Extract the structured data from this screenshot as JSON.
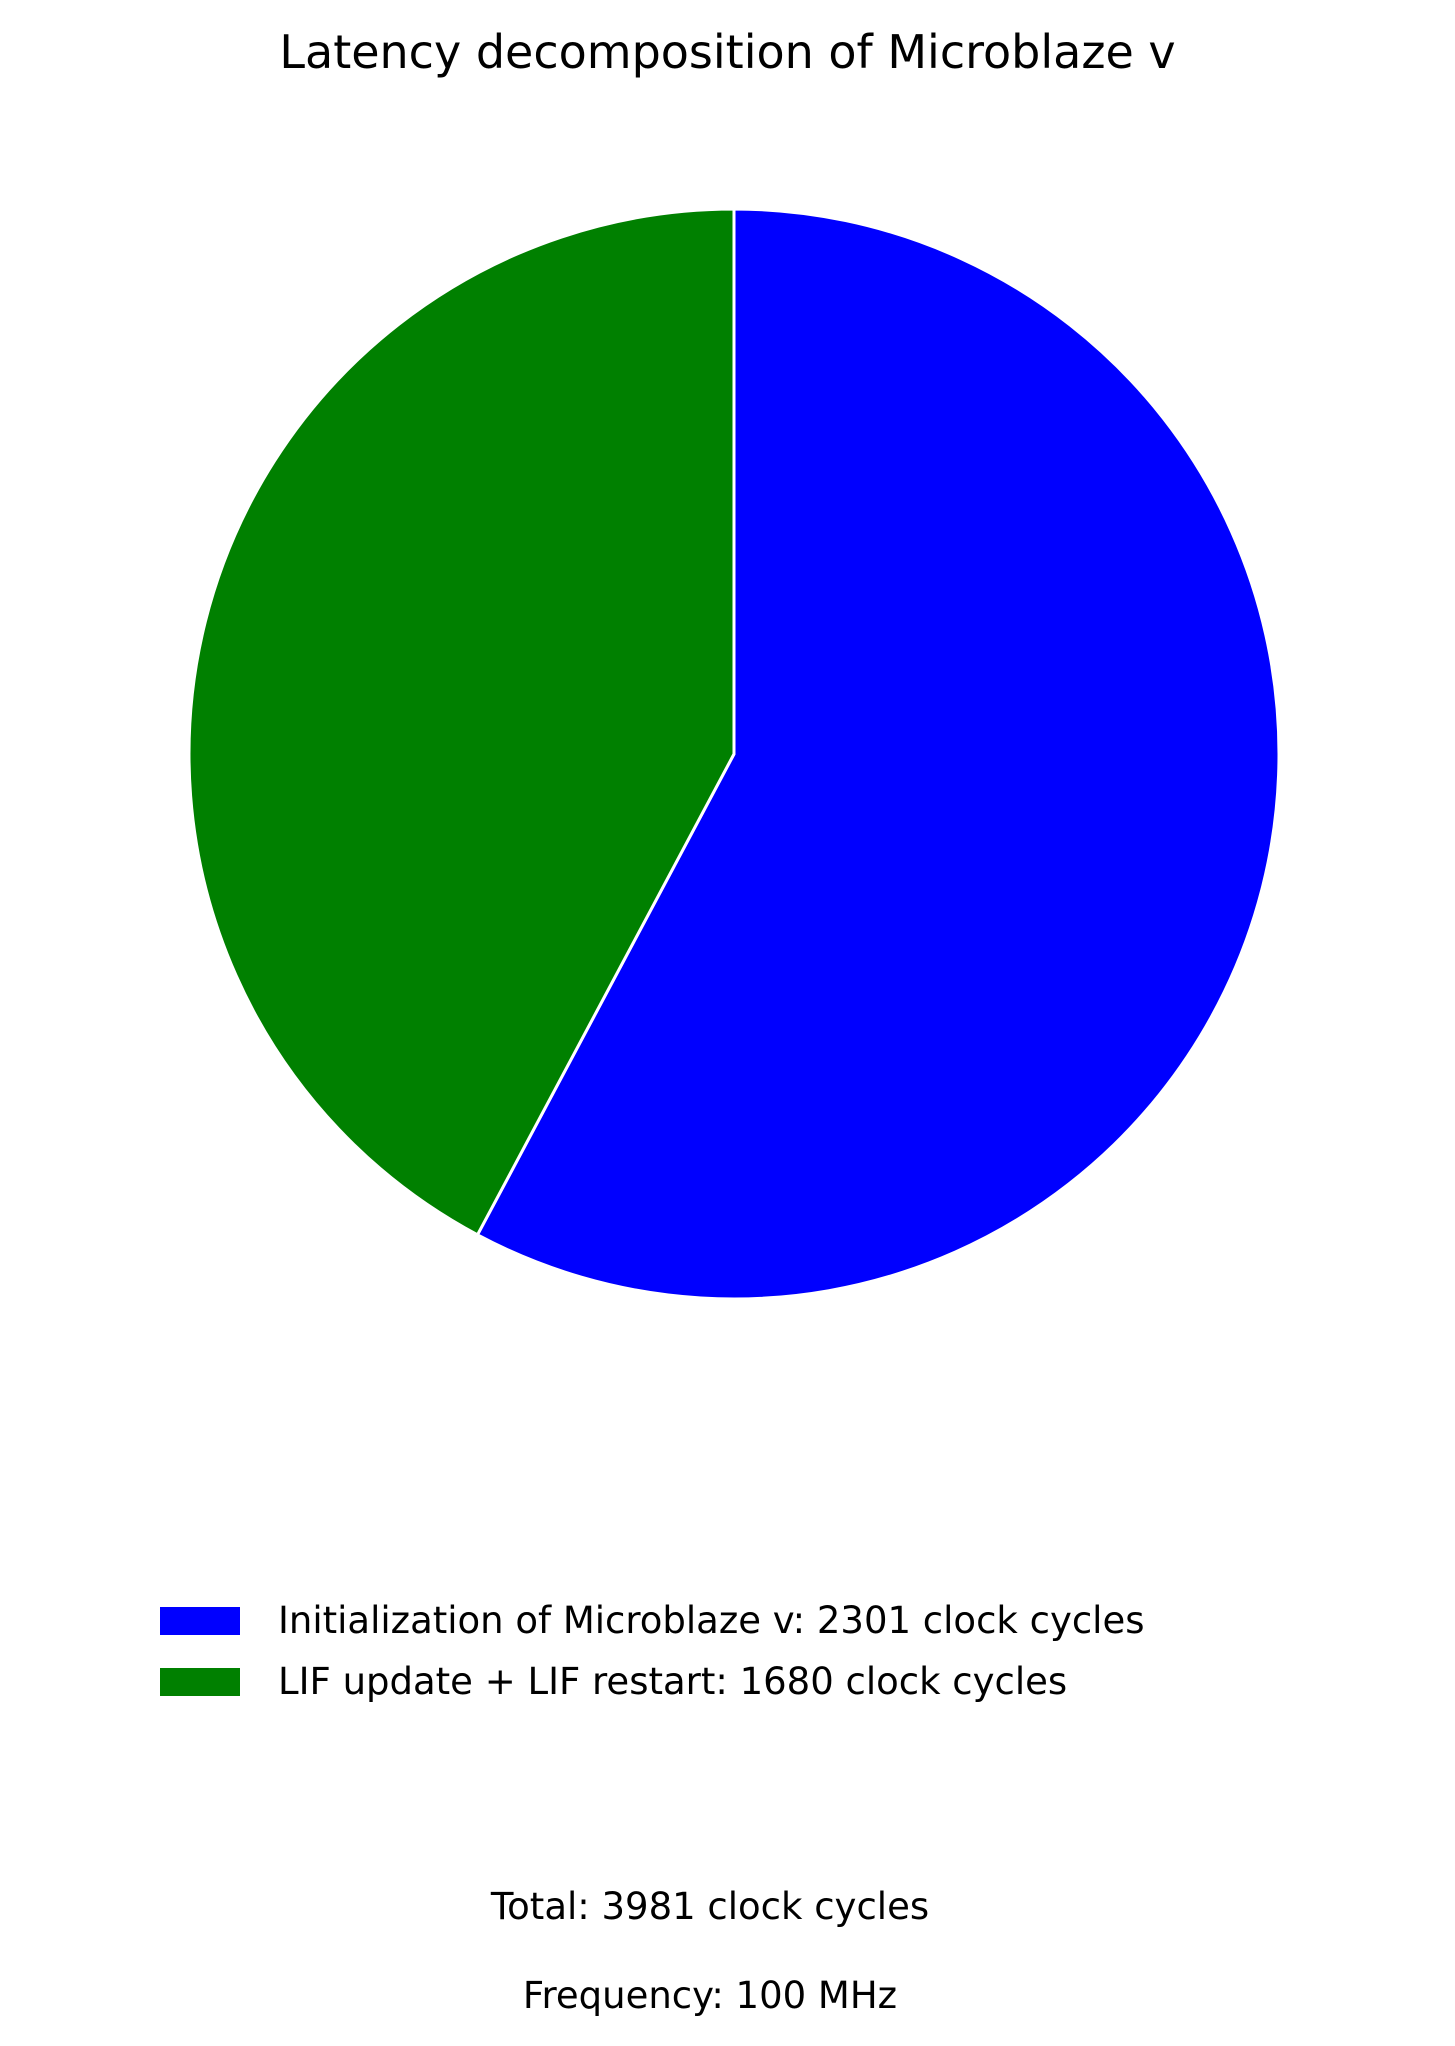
{
  "chart_data": {
    "type": "pie",
    "title": "Latency decomposition of Microblaze v",
    "start_angle_deg": 90,
    "direction": "clockwise",
    "slices": [
      {
        "label": "Initialization of Microblaze v: 2301 clock cycles",
        "value": 2301,
        "color": "#0000ff"
      },
      {
        "label": "LIF update + LIF restart: 1680 clock cycles",
        "value": 1680,
        "color": "#008000"
      }
    ],
    "edge_color": "#ffffff",
    "legend_position": "below",
    "annotations": {
      "total": "Total: 3981 clock cycles",
      "frequency": "Frequency: 100 MHz"
    }
  }
}
